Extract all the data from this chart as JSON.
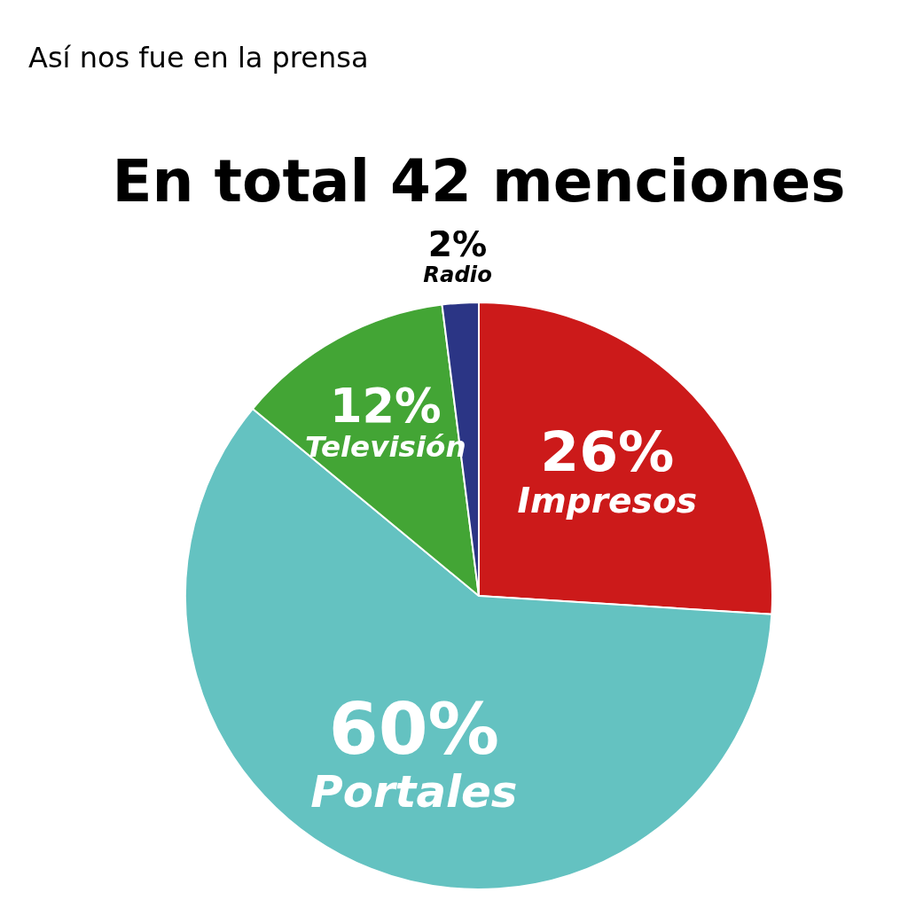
{
  "chart_data": {
    "type": "pie",
    "title": "En total 42 menciones",
    "subtitle": "Así nos fue en la prensa",
    "categories": [
      "Impresos",
      "Portales",
      "Televisión",
      "Radio"
    ],
    "values": [
      26,
      60,
      12,
      2
    ],
    "colors": [
      "#cc1a1a",
      "#64c2c1",
      "#43a535",
      "#2b3585"
    ],
    "value_labels": [
      "26%",
      "60%",
      "12%",
      "2%"
    ],
    "legend": false
  }
}
